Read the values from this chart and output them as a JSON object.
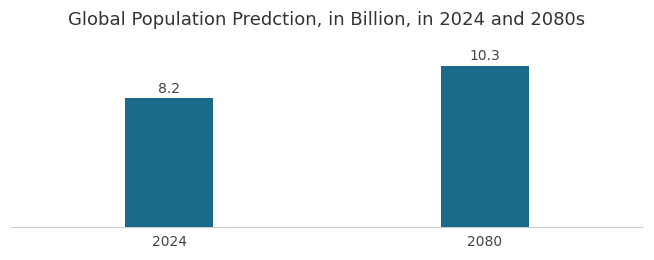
{
  "categories": [
    "2024",
    "2080"
  ],
  "values": [
    8.2,
    10.3
  ],
  "bar_color": "#1a6b8a",
  "title": "Global Population Predction, in Billion, in 2024 and 2080s",
  "title_fontsize": 13,
  "label_fontsize": 10,
  "tick_fontsize": 10,
  "bar_width": 0.28,
  "xlim": [
    -0.5,
    1.5
  ],
  "ylim": [
    0,
    12
  ],
  "background_color": "#ffffff",
  "value_labels": [
    "8.2",
    "10.3"
  ]
}
